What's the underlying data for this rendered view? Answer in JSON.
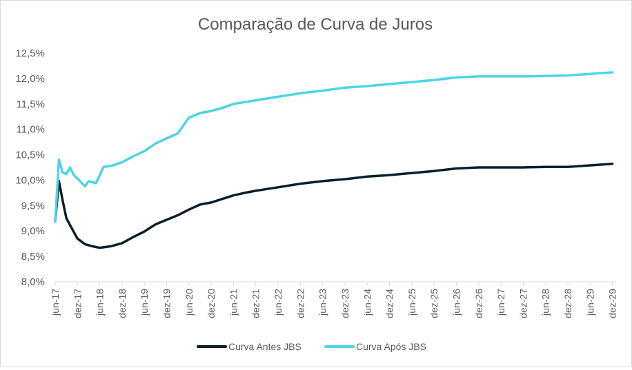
{
  "chart_data": {
    "type": "line",
    "title": "Comparação de Curva de Juros",
    "xlabel": "",
    "ylabel": "",
    "x_ticks": [
      "jun-17",
      "dez-17",
      "jun-18",
      "dez-18",
      "jun-19",
      "dez-19",
      "jun-20",
      "dez-20",
      "jun-21",
      "dez-21",
      "jun-22",
      "dez-22",
      "jun-23",
      "dez-23",
      "jun-24",
      "dez-24",
      "jun-25",
      "dez-25",
      "jun-26",
      "dez-26",
      "jun-27",
      "dez-27",
      "jun-28",
      "dez-28",
      "jun-29",
      "dez-29"
    ],
    "y_ticks": [
      "8,0%",
      "8,5%",
      "9,0%",
      "9,5%",
      "10,0%",
      "10,5%",
      "11,0%",
      "11,5%",
      "12,0%",
      "12,5%"
    ],
    "ylim": [
      8.0,
      12.5
    ],
    "x_range_months": [
      "2017-06",
      "2030-01"
    ],
    "legend_position": "bottom",
    "grid": false,
    "series": [
      {
        "name": "Curva Antes JBS",
        "color": "#0b1f2a",
        "points": [
          [
            "2017-06",
            9.2
          ],
          [
            "2017-07",
            9.98
          ],
          [
            "2017-08",
            9.6
          ],
          [
            "2017-09",
            9.25
          ],
          [
            "2017-11",
            8.98
          ],
          [
            "2017-12",
            8.85
          ],
          [
            "2018-02",
            8.74
          ],
          [
            "2018-04",
            8.7
          ],
          [
            "2018-06",
            8.67
          ],
          [
            "2018-09",
            8.7
          ],
          [
            "2018-12",
            8.76
          ],
          [
            "2019-03",
            8.88
          ],
          [
            "2019-06",
            8.99
          ],
          [
            "2019-09",
            9.13
          ],
          [
            "2019-12",
            9.22
          ],
          [
            "2020-03",
            9.31
          ],
          [
            "2020-06",
            9.42
          ],
          [
            "2020-09",
            9.52
          ],
          [
            "2020-12",
            9.56
          ],
          [
            "2021-03",
            9.63
          ],
          [
            "2021-06",
            9.7
          ],
          [
            "2021-09",
            9.75
          ],
          [
            "2021-12",
            9.79
          ],
          [
            "2022-06",
            9.86
          ],
          [
            "2022-12",
            9.93
          ],
          [
            "2023-06",
            9.98
          ],
          [
            "2023-12",
            10.02
          ],
          [
            "2024-06",
            10.07
          ],
          [
            "2024-12",
            10.1
          ],
          [
            "2025-06",
            10.14
          ],
          [
            "2025-12",
            10.18
          ],
          [
            "2026-06",
            10.23
          ],
          [
            "2026-12",
            10.25
          ],
          [
            "2027-06",
            10.25
          ],
          [
            "2027-12",
            10.25
          ],
          [
            "2028-06",
            10.26
          ],
          [
            "2028-12",
            10.26
          ],
          [
            "2029-06",
            10.29
          ],
          [
            "2029-12",
            10.32
          ]
        ]
      },
      {
        "name": "Curva Após JBS",
        "color": "#4dd4e6",
        "points": [
          [
            "2017-06",
            9.18
          ],
          [
            "2017-07",
            10.4
          ],
          [
            "2017-08",
            10.15
          ],
          [
            "2017-09",
            10.12
          ],
          [
            "2017-10",
            10.25
          ],
          [
            "2017-11",
            10.1
          ],
          [
            "2017-12",
            10.03
          ],
          [
            "2018-02",
            9.88
          ],
          [
            "2018-03",
            9.98
          ],
          [
            "2018-05",
            9.94
          ],
          [
            "2018-07",
            10.26
          ],
          [
            "2018-09",
            10.28
          ],
          [
            "2018-12",
            10.35
          ],
          [
            "2019-03",
            10.47
          ],
          [
            "2019-06",
            10.57
          ],
          [
            "2019-09",
            10.72
          ],
          [
            "2019-12",
            10.82
          ],
          [
            "2020-03",
            10.92
          ],
          [
            "2020-06",
            11.23
          ],
          [
            "2020-09",
            11.32
          ],
          [
            "2020-12",
            11.36
          ],
          [
            "2021-03",
            11.42
          ],
          [
            "2021-06",
            11.5
          ],
          [
            "2021-12",
            11.57
          ],
          [
            "2022-06",
            11.64
          ],
          [
            "2022-12",
            11.71
          ],
          [
            "2023-06",
            11.76
          ],
          [
            "2023-12",
            11.82
          ],
          [
            "2024-06",
            11.85
          ],
          [
            "2024-12",
            11.89
          ],
          [
            "2025-06",
            11.93
          ],
          [
            "2025-12",
            11.97
          ],
          [
            "2026-06",
            12.02
          ],
          [
            "2026-12",
            12.04
          ],
          [
            "2027-06",
            12.04
          ],
          [
            "2027-12",
            12.04
          ],
          [
            "2028-06",
            12.05
          ],
          [
            "2028-12",
            12.06
          ],
          [
            "2029-06",
            12.09
          ],
          [
            "2029-12",
            12.12
          ]
        ]
      }
    ]
  }
}
